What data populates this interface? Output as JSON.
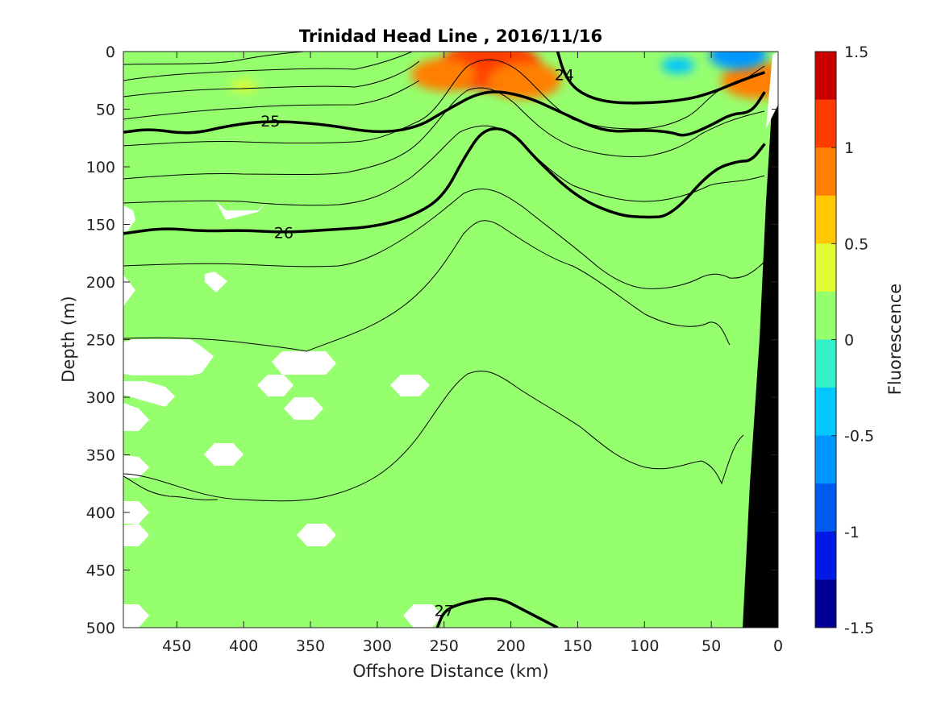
{
  "chart_data": {
    "type": "heatmap",
    "title": "Trinidad Head Line , 2016/11/16",
    "xlabel": "Offshore Distance (km)",
    "ylabel": "Depth (m)",
    "xlim": [
      490,
      0
    ],
    "ylim": [
      0,
      500
    ],
    "x_reversed": true,
    "y_reversed": true,
    "x_ticks": [
      "450",
      "400",
      "350",
      "300",
      "250",
      "200",
      "150",
      "100",
      "50",
      "0"
    ],
    "y_ticks": [
      "0",
      "50",
      "100",
      "150",
      "200",
      "250",
      "300",
      "350",
      "400",
      "450",
      "500"
    ],
    "colorbar": {
      "label": "Fluorescence",
      "range": [
        -1.5,
        1.5
      ],
      "ticks": [
        "1.5",
        "1",
        "0.5",
        "0",
        "-0.5",
        "-1",
        "-1.5"
      ],
      "colors_top_to_bottom": [
        "#c80000",
        "#ff3c00",
        "#ff7f00",
        "#ffc800",
        "#e1fa32",
        "#96ff6e",
        "#32f0c8",
        "#00c8ff",
        "#0096ff",
        "#005af0",
        "#0019e6",
        "#000096"
      ]
    },
    "background_value": 0.1,
    "fluorescence_patches": [
      {
        "x": 215,
        "y": 12,
        "value": 1.2
      },
      {
        "x": 190,
        "y": 25,
        "value": 0.9
      },
      {
        "x": 250,
        "y": 20,
        "value": 0.8
      },
      {
        "x": 15,
        "y": 25,
        "value": 0.9
      },
      {
        "x": 75,
        "y": 12,
        "value": -0.4
      },
      {
        "x": 30,
        "y": 3,
        "value": -0.7
      },
      {
        "x": 400,
        "y": 30,
        "value": 0.3
      },
      {
        "x": 120,
        "y": 40,
        "value": 0.2
      }
    ],
    "density_contours": [
      {
        "label": "24",
        "values_x": [
          165,
          160,
          150,
          130,
          100,
          70,
          50,
          30,
          10
        ],
        "values_y": [
          0,
          20,
          35,
          44,
          45,
          42,
          36,
          26,
          18
        ]
      },
      {
        "label": "25",
        "values_x": [
          490,
          470,
          440,
          410,
          380,
          340,
          300,
          270,
          250,
          220,
          190,
          160,
          130,
          100,
          80,
          70,
          50,
          35,
          20,
          10
        ],
        "values_y": [
          70,
          67,
          72,
          64,
          60,
          63,
          71,
          66,
          52,
          33,
          38,
          54,
          70,
          68,
          70,
          74,
          64,
          54,
          53,
          35
        ]
      },
      {
        "label": "26",
        "values_x": [
          490,
          460,
          430,
          400,
          370,
          340,
          300,
          270,
          250,
          235,
          220,
          200,
          180,
          150,
          120,
          100,
          80,
          50,
          30,
          20,
          10
        ],
        "values_y": [
          158,
          153,
          156,
          155,
          157,
          155,
          152,
          141,
          125,
          92,
          66,
          68,
          95,
          127,
          142,
          144,
          143,
          103,
          95,
          95,
          80
        ]
      },
      {
        "label": "27",
        "values_x": [
          255,
          250,
          235,
          210,
          190,
          165
        ],
        "values_y": [
          500,
          485,
          478,
          473,
          485,
          500
        ]
      }
    ]
  }
}
